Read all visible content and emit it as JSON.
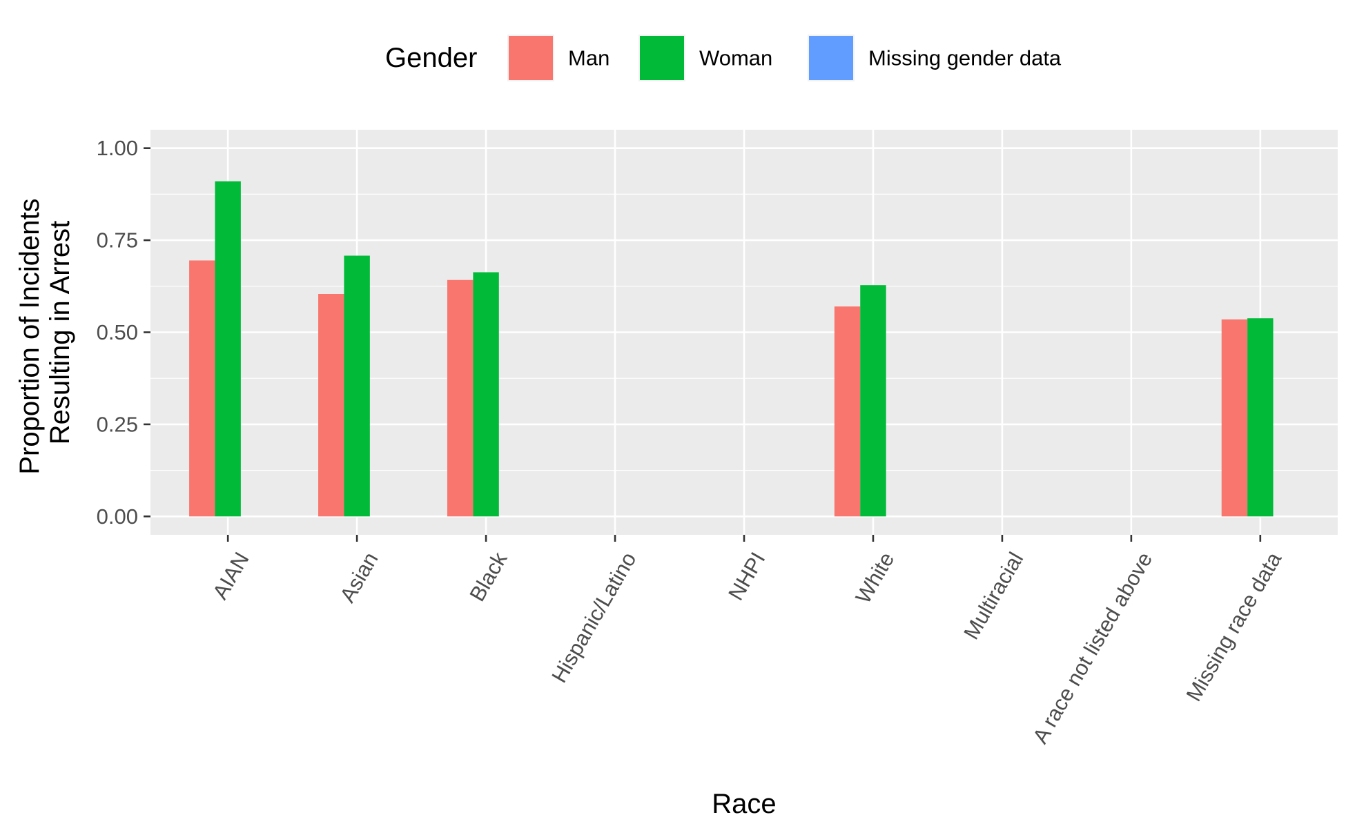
{
  "chart_data": {
    "type": "bar",
    "title": "",
    "xlabel": "Race",
    "ylabel_lines": [
      "Proportion of Incidents",
      "Resulting in Arrest"
    ],
    "ylim": [
      -0.05,
      1.05
    ],
    "yticks": [
      0,
      0.25,
      0.5,
      0.75,
      1
    ],
    "ytick_labels": [
      "0.00",
      "0.25",
      "0.50",
      "0.75",
      "1.00"
    ],
    "grid": true,
    "legend": {
      "title": "Gender",
      "position": "top",
      "entries": [
        "Man",
        "Woman",
        "Missing gender data"
      ]
    },
    "categories": [
      "AIAN",
      "Asian",
      "Black",
      "Hispanic/Latino",
      "NHPI",
      "White",
      "Multiracial",
      "A race not listed above",
      "Missing race data"
    ],
    "series": [
      {
        "name": "Man",
        "color": "#F8766D",
        "values": [
          0.695,
          0.604,
          0.642,
          null,
          null,
          0.57,
          null,
          null,
          0.535
        ]
      },
      {
        "name": "Woman",
        "color": "#00BA38",
        "values": [
          0.91,
          0.708,
          0.663,
          null,
          null,
          0.628,
          null,
          null,
          0.538
        ]
      },
      {
        "name": "Missing gender data",
        "color": "#619CFF",
        "values": [
          null,
          null,
          null,
          null,
          null,
          null,
          null,
          null,
          null
        ]
      }
    ]
  }
}
